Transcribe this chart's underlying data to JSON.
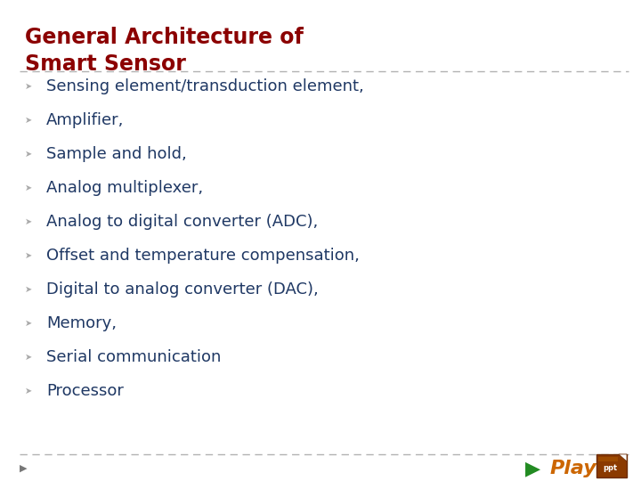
{
  "title_line1": "General Architecture of",
  "title_line2": "Smart Sensor",
  "title_color": "#8B0000",
  "title_fontsize": 17,
  "bullet_symbol": "➤",
  "bullet_color": "#AAAAAA",
  "bullet_items": [
    "Sensing element/transduction element,",
    "Amplifier,",
    "Sample and hold,",
    "Analog multiplexer,",
    "Analog to digital converter (ADC),",
    "Offset and temperature compensation,",
    "Digital to analog converter (DAC),",
    "Memory,",
    "Serial communication",
    "Processor"
  ],
  "bullet_text_color": "#1F3864",
  "bullet_fontsize": 13,
  "background_color": "#FFFFFF",
  "divider_color": "#AAAAAA",
  "play_text": "Play",
  "play_text_color": "#CC6600",
  "play_arrow_color": "#228B22",
  "footer_triangle_color": "#777777"
}
